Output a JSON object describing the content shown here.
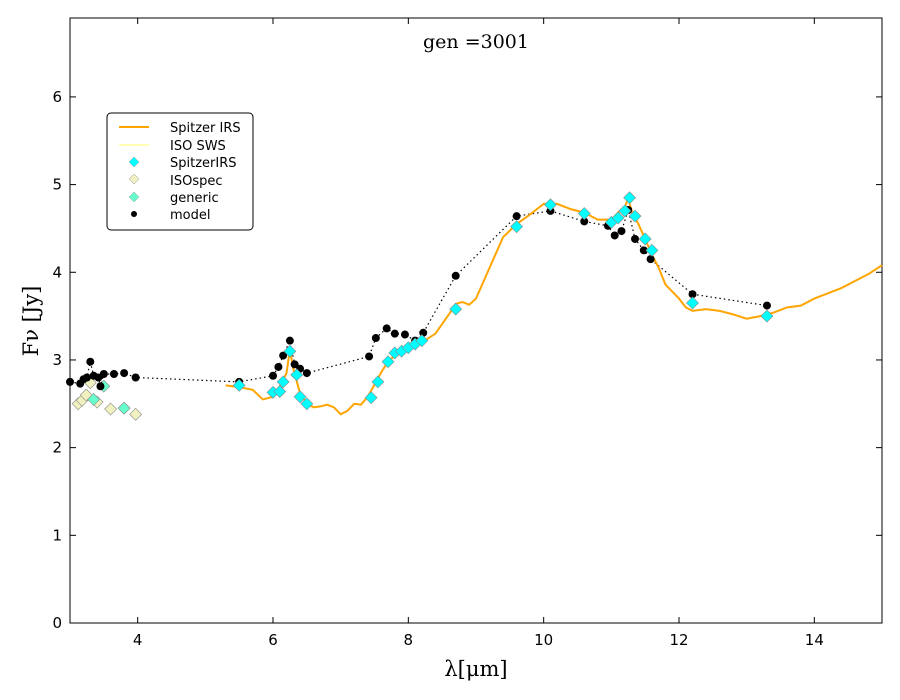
{
  "chart_data": {
    "type": "line",
    "title": "gen =3001",
    "xlabel": "λ[μm]",
    "ylabel": "Fν [Jy]",
    "xlim": [
      3,
      15
    ],
    "ylim": [
      0,
      6.9
    ],
    "xticks": [
      4,
      6,
      8,
      10,
      12,
      14
    ],
    "yticks": [
      0,
      1,
      2,
      3,
      4,
      5,
      6
    ],
    "grid": false,
    "legend_position": "upper-left",
    "legend": [
      "Spitzer IRS",
      "ISO SWS",
      "SpitzerIRS",
      "ISOspec",
      "generic",
      "model"
    ],
    "colors": {
      "spitzer_irs": "#ffa500",
      "iso_sws": "#ffff99",
      "spitzerirs_points": "#00ffff",
      "isospec_points": "#f0f0c0",
      "generic_points": "#66ffcc",
      "model_points": "#000000"
    },
    "series": [
      {
        "name": "Spitzer IRS",
        "kind": "line",
        "x": [
          5.3,
          5.5,
          5.7,
          5.85,
          6.0,
          6.1,
          6.2,
          6.25,
          6.3,
          6.4,
          6.5,
          6.6,
          6.7,
          6.8,
          6.9,
          7.0,
          7.1,
          7.2,
          7.3,
          7.4,
          7.5,
          7.6,
          7.7,
          7.8,
          7.9,
          8.0,
          8.2,
          8.4,
          8.6,
          8.7,
          8.8,
          8.9,
          9.0,
          9.2,
          9.4,
          9.6,
          9.8,
          10.0,
          10.2,
          10.4,
          10.6,
          10.8,
          11.0,
          11.1,
          11.2,
          11.25,
          11.3,
          11.4,
          11.5,
          11.6,
          11.7,
          11.8,
          11.9,
          12.0,
          12.1,
          12.2,
          12.4,
          12.6,
          12.8,
          13.0,
          13.2,
          13.4,
          13.6,
          13.8,
          14.0,
          14.2,
          14.4,
          14.6,
          14.8,
          15.0
        ],
        "y": [
          2.71,
          2.69,
          2.66,
          2.55,
          2.58,
          2.7,
          2.85,
          3.12,
          2.9,
          2.62,
          2.5,
          2.46,
          2.47,
          2.49,
          2.46,
          2.38,
          2.42,
          2.5,
          2.49,
          2.58,
          2.72,
          2.86,
          2.98,
          3.05,
          3.09,
          3.12,
          3.2,
          3.3,
          3.52,
          3.64,
          3.66,
          3.63,
          3.7,
          4.05,
          4.4,
          4.55,
          4.66,
          4.78,
          4.78,
          4.72,
          4.68,
          4.6,
          4.6,
          4.68,
          4.75,
          4.84,
          4.7,
          4.55,
          4.38,
          4.2,
          4.05,
          3.86,
          3.78,
          3.7,
          3.6,
          3.56,
          3.58,
          3.56,
          3.52,
          3.47,
          3.5,
          3.54,
          3.6,
          3.62,
          3.7,
          3.76,
          3.82,
          3.9,
          3.98,
          4.08
        ]
      },
      {
        "name": "ISO SWS",
        "kind": "line",
        "x": [],
        "y": []
      },
      {
        "name": "SpitzerIRS",
        "kind": "marker",
        "marker": "diamond",
        "x": [
          5.5,
          6.0,
          6.1,
          6.15,
          6.25,
          6.35,
          6.4,
          6.5,
          7.45,
          7.55,
          7.7,
          7.8,
          7.9,
          8.0,
          8.1,
          8.2,
          8.7,
          9.6,
          10.1,
          10.6,
          11.0,
          11.1,
          11.2,
          11.27,
          11.35,
          11.5,
          11.6,
          12.2,
          13.3
        ],
        "y": [
          2.71,
          2.63,
          2.64,
          2.75,
          3.1,
          2.83,
          2.58,
          2.5,
          2.57,
          2.75,
          2.98,
          3.08,
          3.1,
          3.14,
          3.18,
          3.22,
          3.58,
          4.52,
          4.77,
          4.67,
          4.57,
          4.62,
          4.7,
          4.85,
          4.64,
          4.38,
          4.25,
          3.65,
          3.5
        ]
      },
      {
        "name": "ISOspec",
        "kind": "marker",
        "marker": "diamond",
        "x": [
          3.12,
          3.18,
          3.24,
          3.3,
          3.4,
          3.6,
          3.8,
          3.97
        ],
        "y": [
          2.5,
          2.54,
          2.6,
          2.74,
          2.52,
          2.44,
          2.45,
          2.38
        ]
      },
      {
        "name": "generic",
        "kind": "marker",
        "marker": "diamond",
        "x": [
          3.35,
          3.5,
          3.8
        ],
        "y": [
          2.55,
          2.7,
          2.45
        ]
      },
      {
        "name": "model",
        "kind": "marker+dotted",
        "marker": "circle",
        "x": [
          3.0,
          3.15,
          3.2,
          3.25,
          3.3,
          3.35,
          3.42,
          3.45,
          3.5,
          3.65,
          3.8,
          3.97,
          5.5,
          6.0,
          6.08,
          6.15,
          6.25,
          6.32,
          6.4,
          6.5,
          7.42,
          7.52,
          7.68,
          7.8,
          7.95,
          8.1,
          8.22,
          8.7,
          9.6,
          10.1,
          10.6,
          10.95,
          11.05,
          11.15,
          11.25,
          11.35,
          11.48,
          11.58,
          12.2,
          13.3
        ],
        "y": [
          2.75,
          2.73,
          2.78,
          2.8,
          2.98,
          2.82,
          2.8,
          2.7,
          2.84,
          2.84,
          2.85,
          2.8,
          2.75,
          2.82,
          2.92,
          3.05,
          3.22,
          2.95,
          2.9,
          2.85,
          3.04,
          3.25,
          3.36,
          3.3,
          3.29,
          3.22,
          3.31,
          3.96,
          4.64,
          4.7,
          4.58,
          4.53,
          4.42,
          4.47,
          4.71,
          4.38,
          4.25,
          4.15,
          3.75,
          3.62
        ]
      }
    ]
  }
}
